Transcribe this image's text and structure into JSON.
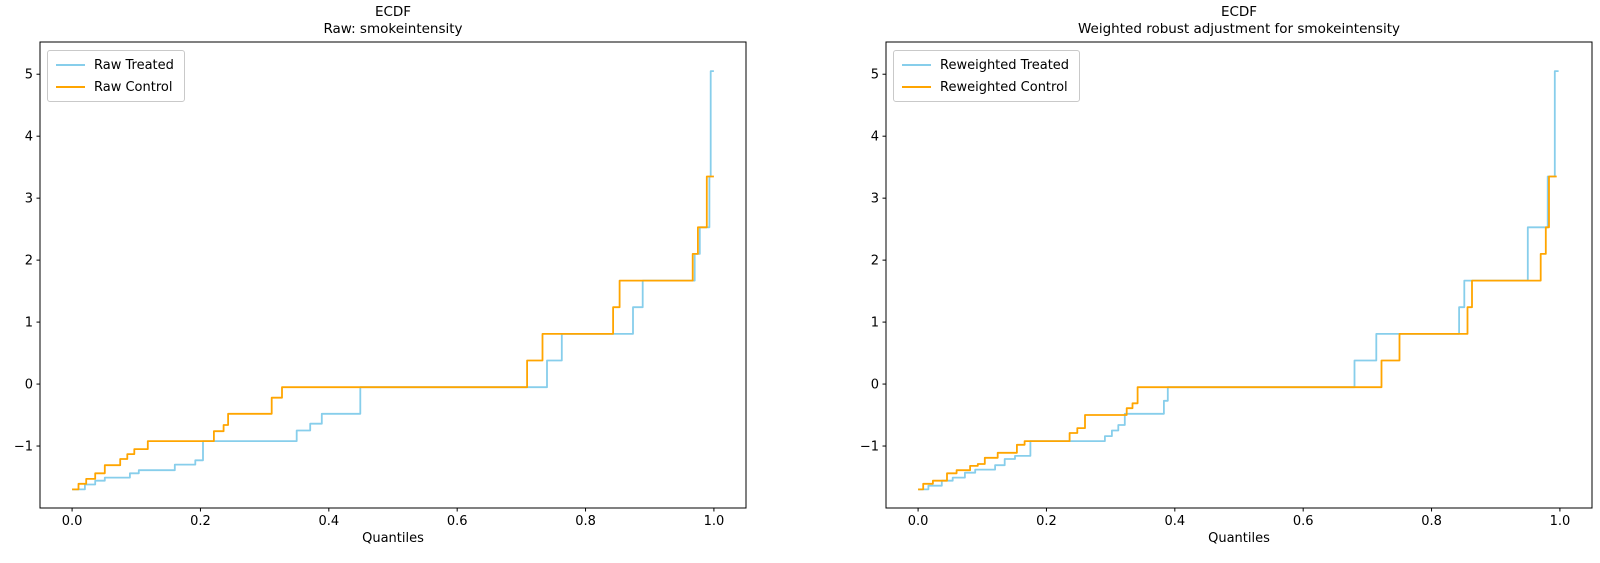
{
  "figure": {
    "background": "#ffffff",
    "text_color": "#000000"
  },
  "colors": {
    "treated": "#87CEEB",
    "control": "#FFA500",
    "spine": "#000000",
    "legend_border": "#c9c9c9"
  },
  "chart_data": [
    {
      "type": "line",
      "variant": "quantile-step-ecdf",
      "title_lines": [
        "ECDF",
        "Raw: smokeintensity"
      ],
      "xlabel": "Quantiles",
      "ylabel": "",
      "grid": false,
      "legend": {
        "position": "upper-left",
        "entries": [
          "Raw Treated",
          "Raw Control"
        ]
      },
      "xlim": [
        -0.05,
        1.05
      ],
      "ylim": [
        -2.0,
        5.52
      ],
      "xticks": {
        "values": [
          0.0,
          0.2,
          0.4,
          0.6,
          0.8,
          1.0
        ],
        "labels": [
          "0.0",
          "0.2",
          "0.4",
          "0.6",
          "0.8",
          "1.0"
        ]
      },
      "yticks": {
        "values": [
          -1,
          0,
          1,
          2,
          3,
          4,
          5
        ],
        "labels": [
          "−1",
          "0",
          "1",
          "2",
          "3",
          "4",
          "5"
        ]
      },
      "series": [
        {
          "name": "Raw Treated",
          "color": "#87CEEB",
          "start": [
            0,
            -1.7
          ],
          "steps": [
            [
              0.02,
              -1.62
            ],
            [
              0.036,
              -1.56
            ],
            [
              0.051,
              -1.51
            ],
            [
              0.09,
              -1.44
            ],
            [
              0.104,
              -1.39
            ],
            [
              0.16,
              -1.3
            ],
            [
              0.192,
              -1.23
            ],
            [
              0.204,
              -0.92
            ],
            [
              0.35,
              -0.75
            ],
            [
              0.371,
              -0.64
            ],
            [
              0.389,
              -0.48
            ],
            [
              0.449,
              -0.05
            ],
            [
              0.74,
              0.38
            ],
            [
              0.763,
              0.81
            ],
            [
              0.874,
              1.24
            ],
            [
              0.889,
              1.67
            ],
            [
              0.97,
              2.1
            ],
            [
              0.978,
              2.53
            ],
            [
              0.993,
              3.35
            ],
            [
              0.995,
              5.05
            ]
          ],
          "end": 1.0
        },
        {
          "name": "Raw Control",
          "color": "#FFA500",
          "start": [
            0,
            -1.7
          ],
          "steps": [
            [
              0.01,
              -1.61
            ],
            [
              0.022,
              -1.53
            ],
            [
              0.036,
              -1.44
            ],
            [
              0.051,
              -1.31
            ],
            [
              0.075,
              -1.21
            ],
            [
              0.086,
              -1.13
            ],
            [
              0.097,
              -1.05
            ],
            [
              0.118,
              -0.92
            ],
            [
              0.221,
              -0.76
            ],
            [
              0.236,
              -0.66
            ],
            [
              0.243,
              -0.48
            ],
            [
              0.311,
              -0.22
            ],
            [
              0.327,
              -0.05
            ],
            [
              0.709,
              0.38
            ],
            [
              0.733,
              0.81
            ],
            [
              0.843,
              1.24
            ],
            [
              0.853,
              1.67
            ],
            [
              0.967,
              2.1
            ],
            [
              0.975,
              2.53
            ],
            [
              0.989,
              3.35
            ]
          ],
          "end": 1.0
        }
      ]
    },
    {
      "type": "line",
      "variant": "quantile-step-ecdf",
      "title_lines": [
        "ECDF",
        "Weighted robust adjustment for smokeintensity"
      ],
      "xlabel": "Quantiles",
      "ylabel": "",
      "grid": false,
      "legend": {
        "position": "upper-left",
        "entries": [
          "Reweighted Treated",
          "Reweighted Control"
        ]
      },
      "xlim": [
        -0.05,
        1.05
      ],
      "ylim": [
        -2.0,
        5.52
      ],
      "xticks": {
        "values": [
          0.0,
          0.2,
          0.4,
          0.6,
          0.8,
          1.0
        ],
        "labels": [
          "0.0",
          "0.2",
          "0.4",
          "0.6",
          "0.8",
          "1.0"
        ]
      },
      "yticks": {
        "values": [
          -1,
          0,
          1,
          2,
          3,
          4,
          5
        ],
        "labels": [
          "−1",
          "0",
          "1",
          "2",
          "3",
          "4",
          "5"
        ]
      },
      "series": [
        {
          "name": "Reweighted Treated",
          "color": "#87CEEB",
          "start": [
            0,
            -1.7
          ],
          "steps": [
            [
              0.016,
              -1.64
            ],
            [
              0.037,
              -1.56
            ],
            [
              0.054,
              -1.51
            ],
            [
              0.073,
              -1.43
            ],
            [
              0.089,
              -1.38
            ],
            [
              0.12,
              -1.31
            ],
            [
              0.135,
              -1.21
            ],
            [
              0.151,
              -1.16
            ],
            [
              0.175,
              -0.92
            ],
            [
              0.291,
              -0.84
            ],
            [
              0.302,
              -0.75
            ],
            [
              0.312,
              -0.66
            ],
            [
              0.322,
              -0.48
            ],
            [
              0.383,
              -0.27
            ],
            [
              0.389,
              -0.05
            ],
            [
              0.68,
              0.38
            ],
            [
              0.714,
              0.81
            ],
            [
              0.843,
              1.24
            ],
            [
              0.851,
              1.67
            ],
            [
              0.95,
              2.53
            ],
            [
              0.981,
              3.35
            ],
            [
              0.992,
              5.05
            ]
          ],
          "end": 0.998
        },
        {
          "name": "Reweighted Control",
          "color": "#FFA500",
          "start": [
            0,
            -1.7
          ],
          "steps": [
            [
              0.008,
              -1.61
            ],
            [
              0.023,
              -1.56
            ],
            [
              0.045,
              -1.44
            ],
            [
              0.06,
              -1.39
            ],
            [
              0.081,
              -1.32
            ],
            [
              0.093,
              -1.29
            ],
            [
              0.104,
              -1.19
            ],
            [
              0.124,
              -1.11
            ],
            [
              0.154,
              -0.98
            ],
            [
              0.166,
              -0.92
            ],
            [
              0.236,
              -0.79
            ],
            [
              0.248,
              -0.71
            ],
            [
              0.26,
              -0.5
            ],
            [
              0.325,
              -0.39
            ],
            [
              0.334,
              -0.31
            ],
            [
              0.342,
              -0.05
            ],
            [
              0.722,
              0.38
            ],
            [
              0.75,
              0.81
            ],
            [
              0.856,
              1.24
            ],
            [
              0.863,
              1.67
            ],
            [
              0.97,
              2.1
            ],
            [
              0.978,
              2.53
            ],
            [
              0.983,
              3.35
            ]
          ],
          "end": 0.995
        }
      ]
    }
  ]
}
